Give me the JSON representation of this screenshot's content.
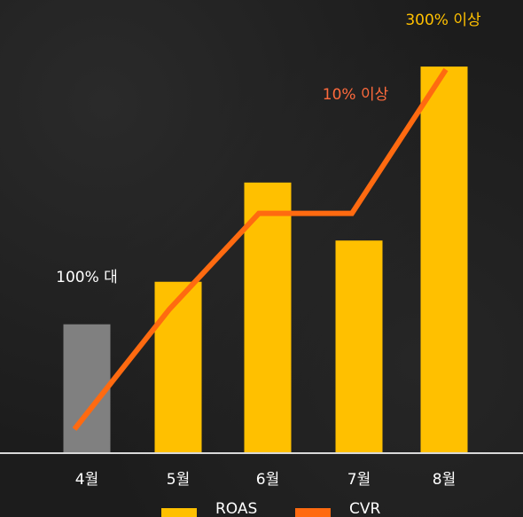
{
  "chart_data": {
    "type": "bar",
    "categories": [
      "4월",
      "5월",
      "6월",
      "7월",
      "8월"
    ],
    "series": [
      {
        "name": "ROAS",
        "values": [
          100,
          133,
          210,
          165,
          300
        ],
        "color": "#ffc000",
        "highlight_colors": [
          "#808080",
          "#ffc000",
          "#ffc000",
          "#ffc000",
          "#ffc000"
        ]
      },
      {
        "name": "CVR",
        "type": "line",
        "values": [
          1,
          6,
          10,
          10,
          16
        ],
        "color": "#ff6a10"
      }
    ],
    "ylim": [
      0,
      320
    ],
    "line_ylim": [
      0,
      17.2
    ],
    "grid": false,
    "legend_placement": "bottom",
    "annotations": [
      {
        "text": "100% 대",
        "color": "#ffffff"
      },
      {
        "text": "10% 이상",
        "color": "#ff6a3c"
      },
      {
        "text": "300% 이상",
        "color": "#ffc000"
      }
    ]
  }
}
